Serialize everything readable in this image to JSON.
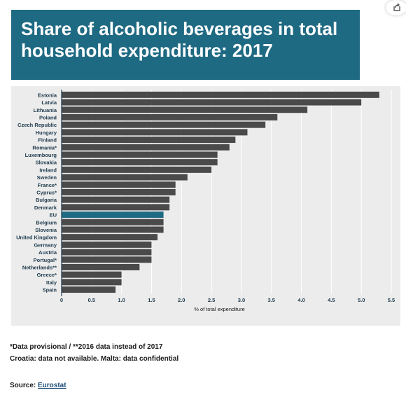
{
  "header": {
    "title_line1": "Share of alcoholic beverages in total",
    "title_line2": "household expenditure: 2017"
  },
  "toolbar": {
    "share_icon": "share-icon"
  },
  "colors": {
    "banner": "#1f6a83",
    "bar": "#4a4a4a",
    "highlight": "#1f6a83",
    "panel": "#ececec"
  },
  "chart_data": {
    "type": "bar",
    "orientation": "horizontal",
    "categories": [
      "Estonia",
      "Latvia",
      "Lithuania",
      "Poland",
      "Czech Republic",
      "Hungary",
      "Finland",
      "Romania*",
      "Luxembourg",
      "Slovakia",
      "Ireland",
      "Sweden",
      "France*",
      "Cyprus*",
      "Bulgaria",
      "Denmark",
      "EU",
      "Belgium",
      "Slovenia",
      "United Kingdom",
      "Germany",
      "Austria",
      "Portugal*",
      "Netherlands**",
      "Greece*",
      "Italy",
      "Spain"
    ],
    "values": [
      5.3,
      5.0,
      4.1,
      3.6,
      3.4,
      3.1,
      2.9,
      2.8,
      2.6,
      2.6,
      2.5,
      2.1,
      1.9,
      1.9,
      1.8,
      1.8,
      1.7,
      1.7,
      1.7,
      1.6,
      1.5,
      1.5,
      1.5,
      1.3,
      1.0,
      1.0,
      0.9
    ],
    "highlight_category": "EU",
    "xlim": [
      0,
      5.5
    ],
    "xticks": [
      "0",
      "0.5",
      "1.0",
      "1.5",
      "2.0",
      "2.5",
      "3.0",
      "3.5",
      "4.0",
      "4.5",
      "5.0",
      "5.5"
    ],
    "xlabel": "% of total expenditure",
    "ylabel": "",
    "grid": true,
    "legend": "none"
  },
  "notes": {
    "line1": "*Data provisional / **2016 data instead of 2017",
    "line2": "Croatia: data not available. Malta: data confidential"
  },
  "source": {
    "label": "Source: ",
    "link_text": "Eurostat"
  }
}
